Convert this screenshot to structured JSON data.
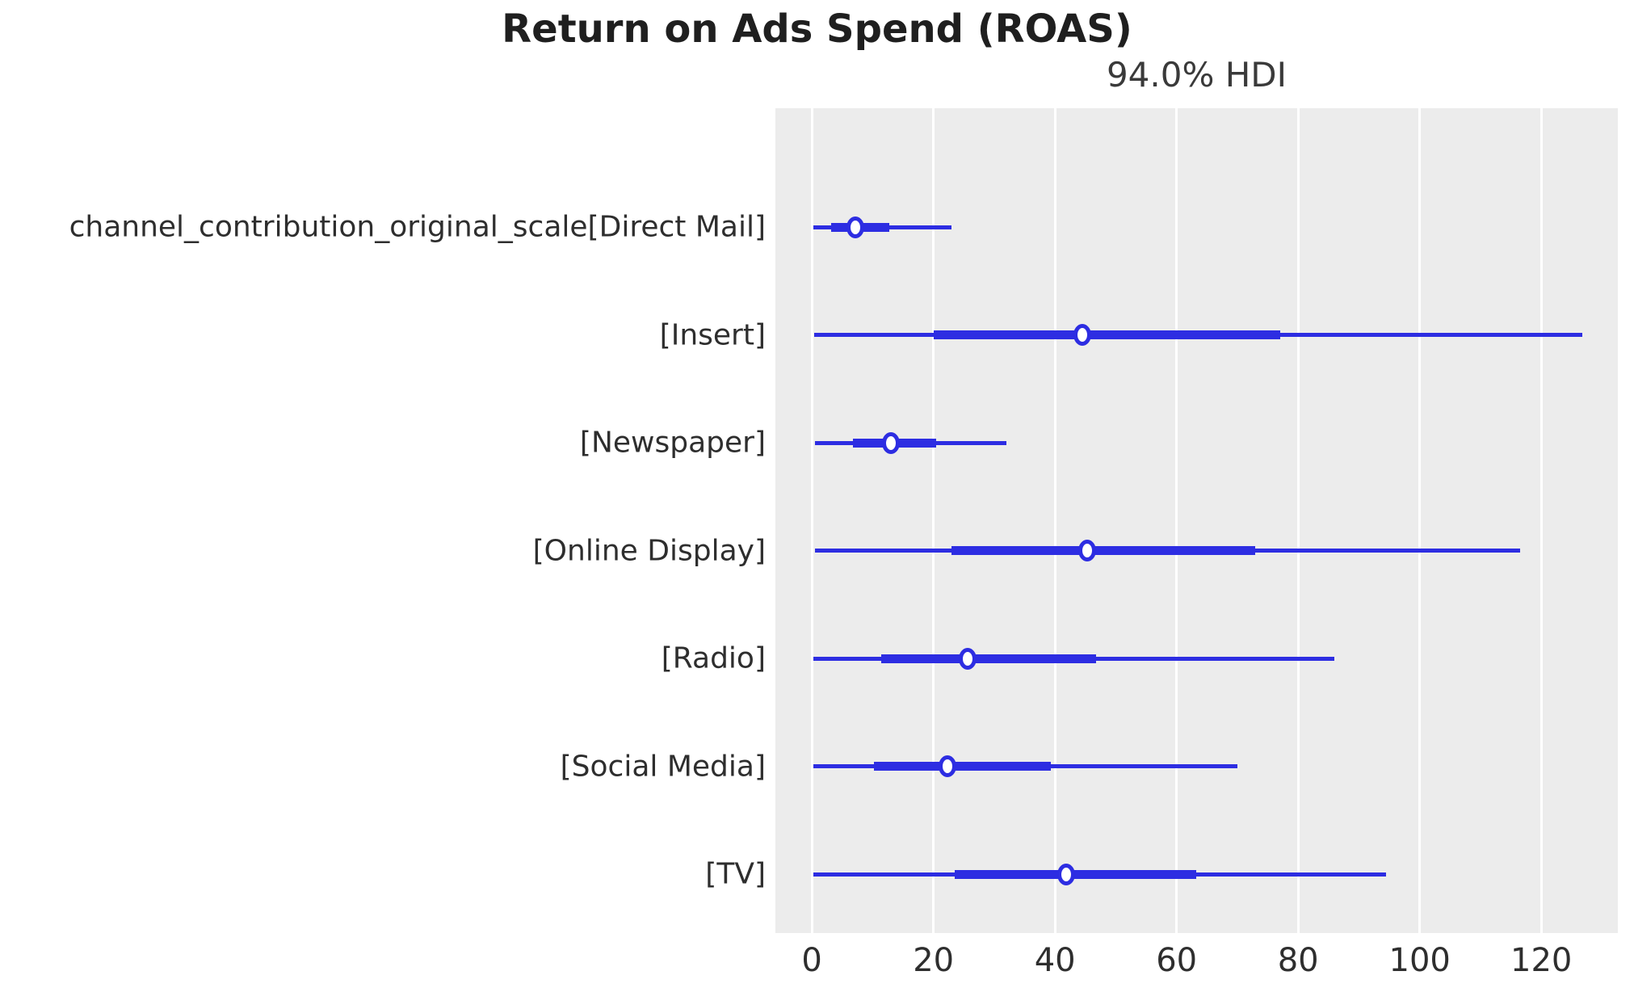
{
  "title": "Return on Ads Spend (ROAS)",
  "subtitle": "94.0% HDI",
  "chart_data": {
    "type": "forest",
    "title": "Return on Ads Spend (ROAS)",
    "subtitle": "94.0% HDI",
    "hdi_probability": 94.0,
    "orientation": "horizontal",
    "grid": "vertical-white-on-gray",
    "x_ticks": [
      0,
      20,
      40,
      60,
      80,
      100,
      120
    ],
    "xlim": [
      -6,
      132.6
    ],
    "rows": [
      {
        "label": "channel_contribution_original_scale[Direct Mail]",
        "hdi_low": 0.2,
        "hdi_high": 23,
        "thick_low": 3.2,
        "thick_high": 12.8,
        "point": 7.2
      },
      {
        "label": "[Insert]",
        "hdi_low": 0.4,
        "hdi_high": 126.8,
        "thick_low": 20,
        "thick_high": 77,
        "point": 44.5
      },
      {
        "label": "[Newspaper]",
        "hdi_low": 0.5,
        "hdi_high": 32,
        "thick_low": 6.8,
        "thick_high": 20.5,
        "point": 13
      },
      {
        "label": "[Online Display]",
        "hdi_low": 0.5,
        "hdi_high": 116.5,
        "thick_low": 23,
        "thick_high": 73,
        "point": 45.3
      },
      {
        "label": "[Radio]",
        "hdi_low": 0.3,
        "hdi_high": 86,
        "thick_low": 11.4,
        "thick_high": 46.8,
        "point": 25.6
      },
      {
        "label": "[Social Media]",
        "hdi_low": 0.2,
        "hdi_high": 70,
        "thick_low": 10.2,
        "thick_high": 39.3,
        "point": 22.3
      },
      {
        "label": "[TV]",
        "hdi_low": 0.2,
        "hdi_high": 94.5,
        "thick_low": 23.5,
        "thick_high": 63.2,
        "point": 41.8
      }
    ],
    "colors": {
      "line": "#2d2de2",
      "marker_fill": "#ffffff",
      "plot_background": "#ececec",
      "grid_line": "#ffffff",
      "title_text": "#1f1f1f",
      "label_text": "#2e2e2e"
    }
  }
}
